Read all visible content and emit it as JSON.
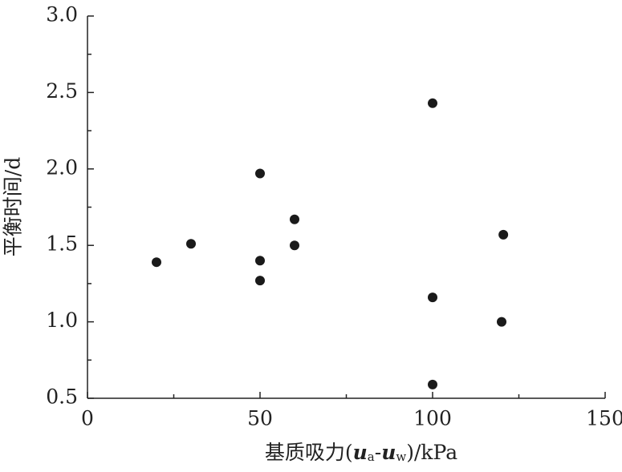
{
  "chart_data": {
    "type": "scatter",
    "xlabel": [
      "基质吸力(",
      "u",
      "a",
      "-",
      "u",
      "w",
      ")/kPa"
    ],
    "ylabel": "平衡时间/d",
    "x": [
      20,
      30,
      50,
      50,
      50,
      60,
      60,
      100,
      100,
      100,
      120.5,
      120
    ],
    "series": [
      {
        "color": "#1a1a1a",
        "values": [
          1.39,
          1.51,
          1.97,
          1.4,
          1.27,
          1.67,
          1.5,
          2.43,
          1.16,
          0.59,
          1.57,
          1.0
        ]
      }
    ],
    "xlim": [
      0,
      150
    ],
    "xticks": [
      0,
      50,
      100,
      150
    ],
    "xminor": [
      25,
      75,
      125
    ],
    "ylim": [
      0.5,
      3.0
    ],
    "yticks": [
      0.5,
      {
        "value": 1,
        "label": "1.0"
      },
      1.5,
      {
        "value": 2,
        "label": "2.0"
      },
      2.5,
      {
        "value": 3,
        "label": "3.0"
      }
    ],
    "yminor": [
      0.75,
      1.25,
      1.75,
      2.25,
      2.75
    ],
    "grid": false
  }
}
